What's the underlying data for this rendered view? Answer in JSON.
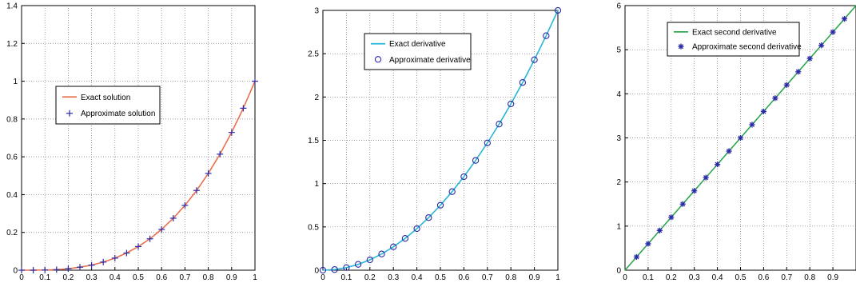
{
  "chart_data": [
    {
      "type": "line",
      "xlim": [
        0,
        1
      ],
      "ylim": [
        0,
        1.4
      ],
      "x_ticks": [
        "0",
        "0.1",
        "0.2",
        "0.3",
        "0.4",
        "0.5",
        "0.6",
        "0.7",
        "0.8",
        "0.9",
        "1"
      ],
      "y_ticks": [
        "0",
        "0.2",
        "0.4",
        "0.6",
        "0.8",
        "1",
        "1.2",
        "1.4"
      ],
      "grid": true,
      "legend_position": "center-left",
      "series": [
        {
          "name": "Exact solution",
          "style": "line",
          "color": "#e8704f",
          "x": [
            0,
            0.05,
            0.1,
            0.15,
            0.2,
            0.25,
            0.3,
            0.35,
            0.4,
            0.45,
            0.5,
            0.55,
            0.6,
            0.65,
            0.7,
            0.75,
            0.8,
            0.85,
            0.9,
            0.95,
            1
          ],
          "y": [
            0,
            0.0001,
            0.001,
            0.003,
            0.008,
            0.016,
            0.027,
            0.043,
            0.064,
            0.091,
            0.125,
            0.166,
            0.216,
            0.275,
            0.343,
            0.422,
            0.512,
            0.614,
            0.729,
            0.857,
            1
          ]
        },
        {
          "name": "Approximate solution",
          "style": "marker",
          "marker": "plus",
          "color": "#2b2ba8",
          "x": [
            0,
            0.05,
            0.1,
            0.15,
            0.2,
            0.25,
            0.3,
            0.35,
            0.4,
            0.45,
            0.5,
            0.55,
            0.6,
            0.65,
            0.7,
            0.75,
            0.8,
            0.85,
            0.9,
            0.95,
            1
          ],
          "y": [
            0,
            0.0001,
            0.001,
            0.003,
            0.008,
            0.016,
            0.027,
            0.043,
            0.064,
            0.091,
            0.125,
            0.166,
            0.216,
            0.275,
            0.343,
            0.422,
            0.512,
            0.614,
            0.729,
            0.857,
            1
          ]
        }
      ]
    },
    {
      "type": "line",
      "xlim": [
        0,
        1
      ],
      "ylim": [
        0,
        3
      ],
      "x_ticks": [
        "0",
        "0.1",
        "0.2",
        "0.3",
        "0.4",
        "0.5",
        "0.6",
        "0.7",
        "0.8",
        "0.9",
        "1"
      ],
      "y_ticks": [
        "0",
        "0.5",
        "1",
        "1.5",
        "2",
        "2.5",
        "3"
      ],
      "grid": true,
      "legend_position": "top-left",
      "series": [
        {
          "name": "Exact derivative",
          "style": "line",
          "color": "#29b6d6",
          "x": [
            0,
            0.05,
            0.1,
            0.15,
            0.2,
            0.25,
            0.3,
            0.35,
            0.4,
            0.45,
            0.5,
            0.55,
            0.6,
            0.65,
            0.7,
            0.75,
            0.8,
            0.85,
            0.9,
            0.95,
            1
          ],
          "y": [
            0,
            0.0075,
            0.03,
            0.0675,
            0.12,
            0.1875,
            0.27,
            0.3675,
            0.48,
            0.6075,
            0.75,
            0.9075,
            1.08,
            1.2675,
            1.47,
            1.6875,
            1.92,
            2.1675,
            2.43,
            2.7075,
            3
          ]
        },
        {
          "name": "Approximate derivative",
          "style": "marker",
          "marker": "circle",
          "color": "#2b2ba8",
          "x": [
            0,
            0.05,
            0.1,
            0.15,
            0.2,
            0.25,
            0.3,
            0.35,
            0.4,
            0.45,
            0.5,
            0.55,
            0.6,
            0.65,
            0.7,
            0.75,
            0.8,
            0.85,
            0.9,
            0.95,
            1
          ],
          "y": [
            0,
            0.0075,
            0.03,
            0.0675,
            0.12,
            0.1875,
            0.27,
            0.3675,
            0.48,
            0.6075,
            0.75,
            0.9075,
            1.08,
            1.2675,
            1.47,
            1.6875,
            1.92,
            2.1675,
            2.43,
            2.7075,
            3
          ]
        }
      ]
    },
    {
      "type": "line",
      "xlim": [
        0,
        1
      ],
      "ylim": [
        0,
        6
      ],
      "x_ticks": [
        "0",
        "0.1",
        "0.2",
        "0.3",
        "0.4",
        "0.5",
        "0.6",
        "0.7",
        "0.8",
        "0.9"
      ],
      "y_ticks": [
        "0",
        "1",
        "2",
        "3",
        "4",
        "5",
        "6"
      ],
      "grid": true,
      "legend_position": "top-left",
      "series": [
        {
          "name": "Exact second derivative",
          "style": "line",
          "color": "#2fa84f",
          "x": [
            0,
            0.05,
            0.1,
            0.15,
            0.2,
            0.25,
            0.3,
            0.35,
            0.4,
            0.45,
            0.5,
            0.55,
            0.6,
            0.65,
            0.7,
            0.75,
            0.8,
            0.85,
            0.9,
            0.95,
            1
          ],
          "y": [
            0,
            0.3,
            0.6,
            0.9,
            1.2,
            1.5,
            1.8,
            2.1,
            2.4,
            2.7,
            3.0,
            3.3,
            3.6,
            3.9,
            4.2,
            4.5,
            4.8,
            5.1,
            5.4,
            5.7,
            6.0
          ]
        },
        {
          "name": "Approximate second derivative",
          "style": "marker",
          "marker": "asterisk",
          "color": "#2b2ba8",
          "x": [
            0.05,
            0.1,
            0.15,
            0.2,
            0.25,
            0.3,
            0.35,
            0.4,
            0.45,
            0.5,
            0.55,
            0.6,
            0.65,
            0.7,
            0.75,
            0.8,
            0.85,
            0.9,
            0.95
          ],
          "y": [
            0.3,
            0.6,
            0.9,
            1.2,
            1.5,
            1.8,
            2.1,
            2.4,
            2.7,
            3.0,
            3.3,
            3.6,
            3.9,
            4.2,
            4.5,
            4.8,
            5.1,
            5.4,
            5.7
          ]
        }
      ]
    }
  ]
}
